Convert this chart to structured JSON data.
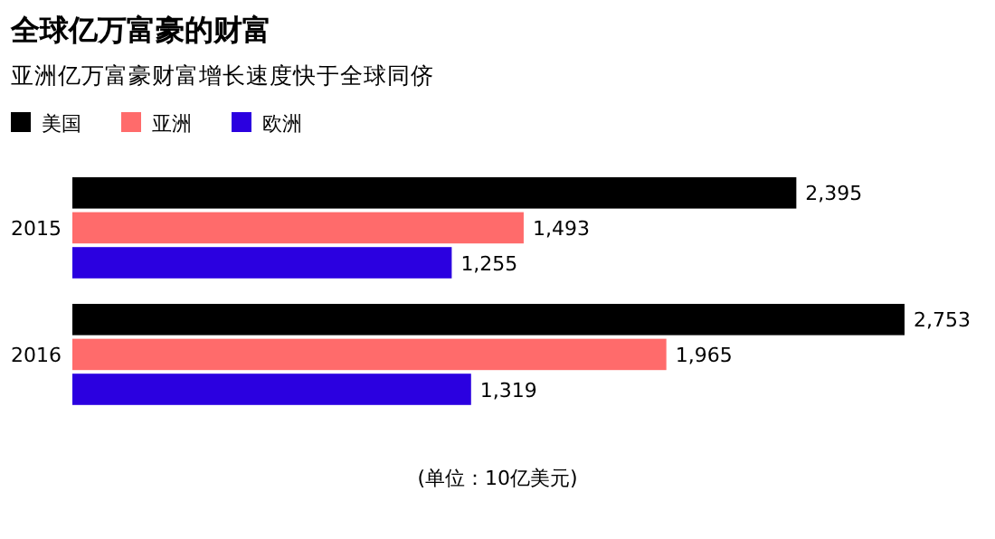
{
  "chart_data": {
    "type": "bar",
    "orientation": "horizontal",
    "title": "全球亿万富豪的财富",
    "subtitle": "亚洲亿万富豪财富增长速度快于全球同侪",
    "xlabel": "(单位：10亿美元)",
    "categories": [
      "2015",
      "2016"
    ],
    "series": [
      {
        "name": "美国",
        "color": "#000000",
        "values": [
          2395,
          2753
        ],
        "value_labels": [
          "2,395",
          "2,753"
        ]
      },
      {
        "name": "亚洲",
        "color": "#ff6b6b",
        "values": [
          1493,
          1965
        ],
        "value_labels": [
          "1,493",
          "1,965"
        ]
      },
      {
        "name": "欧洲",
        "color": "#2b00e0",
        "values": [
          1255,
          1319
        ],
        "value_labels": [
          "1,255",
          "1,319"
        ]
      }
    ],
    "legend": "top left"
  }
}
